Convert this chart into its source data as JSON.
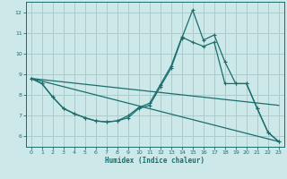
{
  "xlabel": "Humidex (Indice chaleur)",
  "bg_color": "#cce8e8",
  "grid_color": "#aacccc",
  "line_color": "#1a6e6e",
  "xlim": [
    -0.5,
    23.5
  ],
  "ylim": [
    5.5,
    12.5
  ],
  "xticks": [
    0,
    1,
    2,
    3,
    4,
    5,
    6,
    7,
    8,
    9,
    10,
    11,
    12,
    13,
    14,
    15,
    16,
    17,
    18,
    19,
    20,
    21,
    22,
    23
  ],
  "yticks": [
    6,
    7,
    8,
    9,
    10,
    11,
    12
  ],
  "series": {
    "line_spike": {
      "x": [
        0,
        1,
        2,
        3,
        4,
        5,
        6,
        7,
        8,
        9,
        10,
        11,
        12,
        13,
        14,
        15,
        16,
        17,
        18,
        19,
        20,
        21,
        22,
        23
      ],
      "y": [
        8.8,
        8.55,
        7.9,
        7.35,
        7.1,
        6.9,
        6.75,
        6.7,
        6.75,
        6.9,
        7.35,
        7.5,
        8.4,
        9.3,
        10.75,
        12.1,
        10.65,
        10.9,
        9.6,
        8.55,
        8.55,
        7.35,
        6.2,
        5.75
      ]
    },
    "line_smooth": {
      "x": [
        0,
        1,
        2,
        3,
        4,
        5,
        6,
        7,
        8,
        9,
        10,
        11,
        12,
        13,
        14,
        15,
        16,
        17,
        18,
        19,
        20,
        21,
        22,
        23
      ],
      "y": [
        8.8,
        8.55,
        7.9,
        7.35,
        7.1,
        6.9,
        6.75,
        6.7,
        6.75,
        7.0,
        7.4,
        7.6,
        8.5,
        9.4,
        10.8,
        10.55,
        10.35,
        10.55,
        8.55,
        8.55,
        8.55,
        7.35,
        6.2,
        5.75
      ]
    },
    "line_diag1": {
      "x": [
        0,
        23
      ],
      "y": [
        8.8,
        5.75
      ]
    },
    "line_diag2": {
      "x": [
        0,
        23
      ],
      "y": [
        8.8,
        7.5
      ]
    }
  }
}
